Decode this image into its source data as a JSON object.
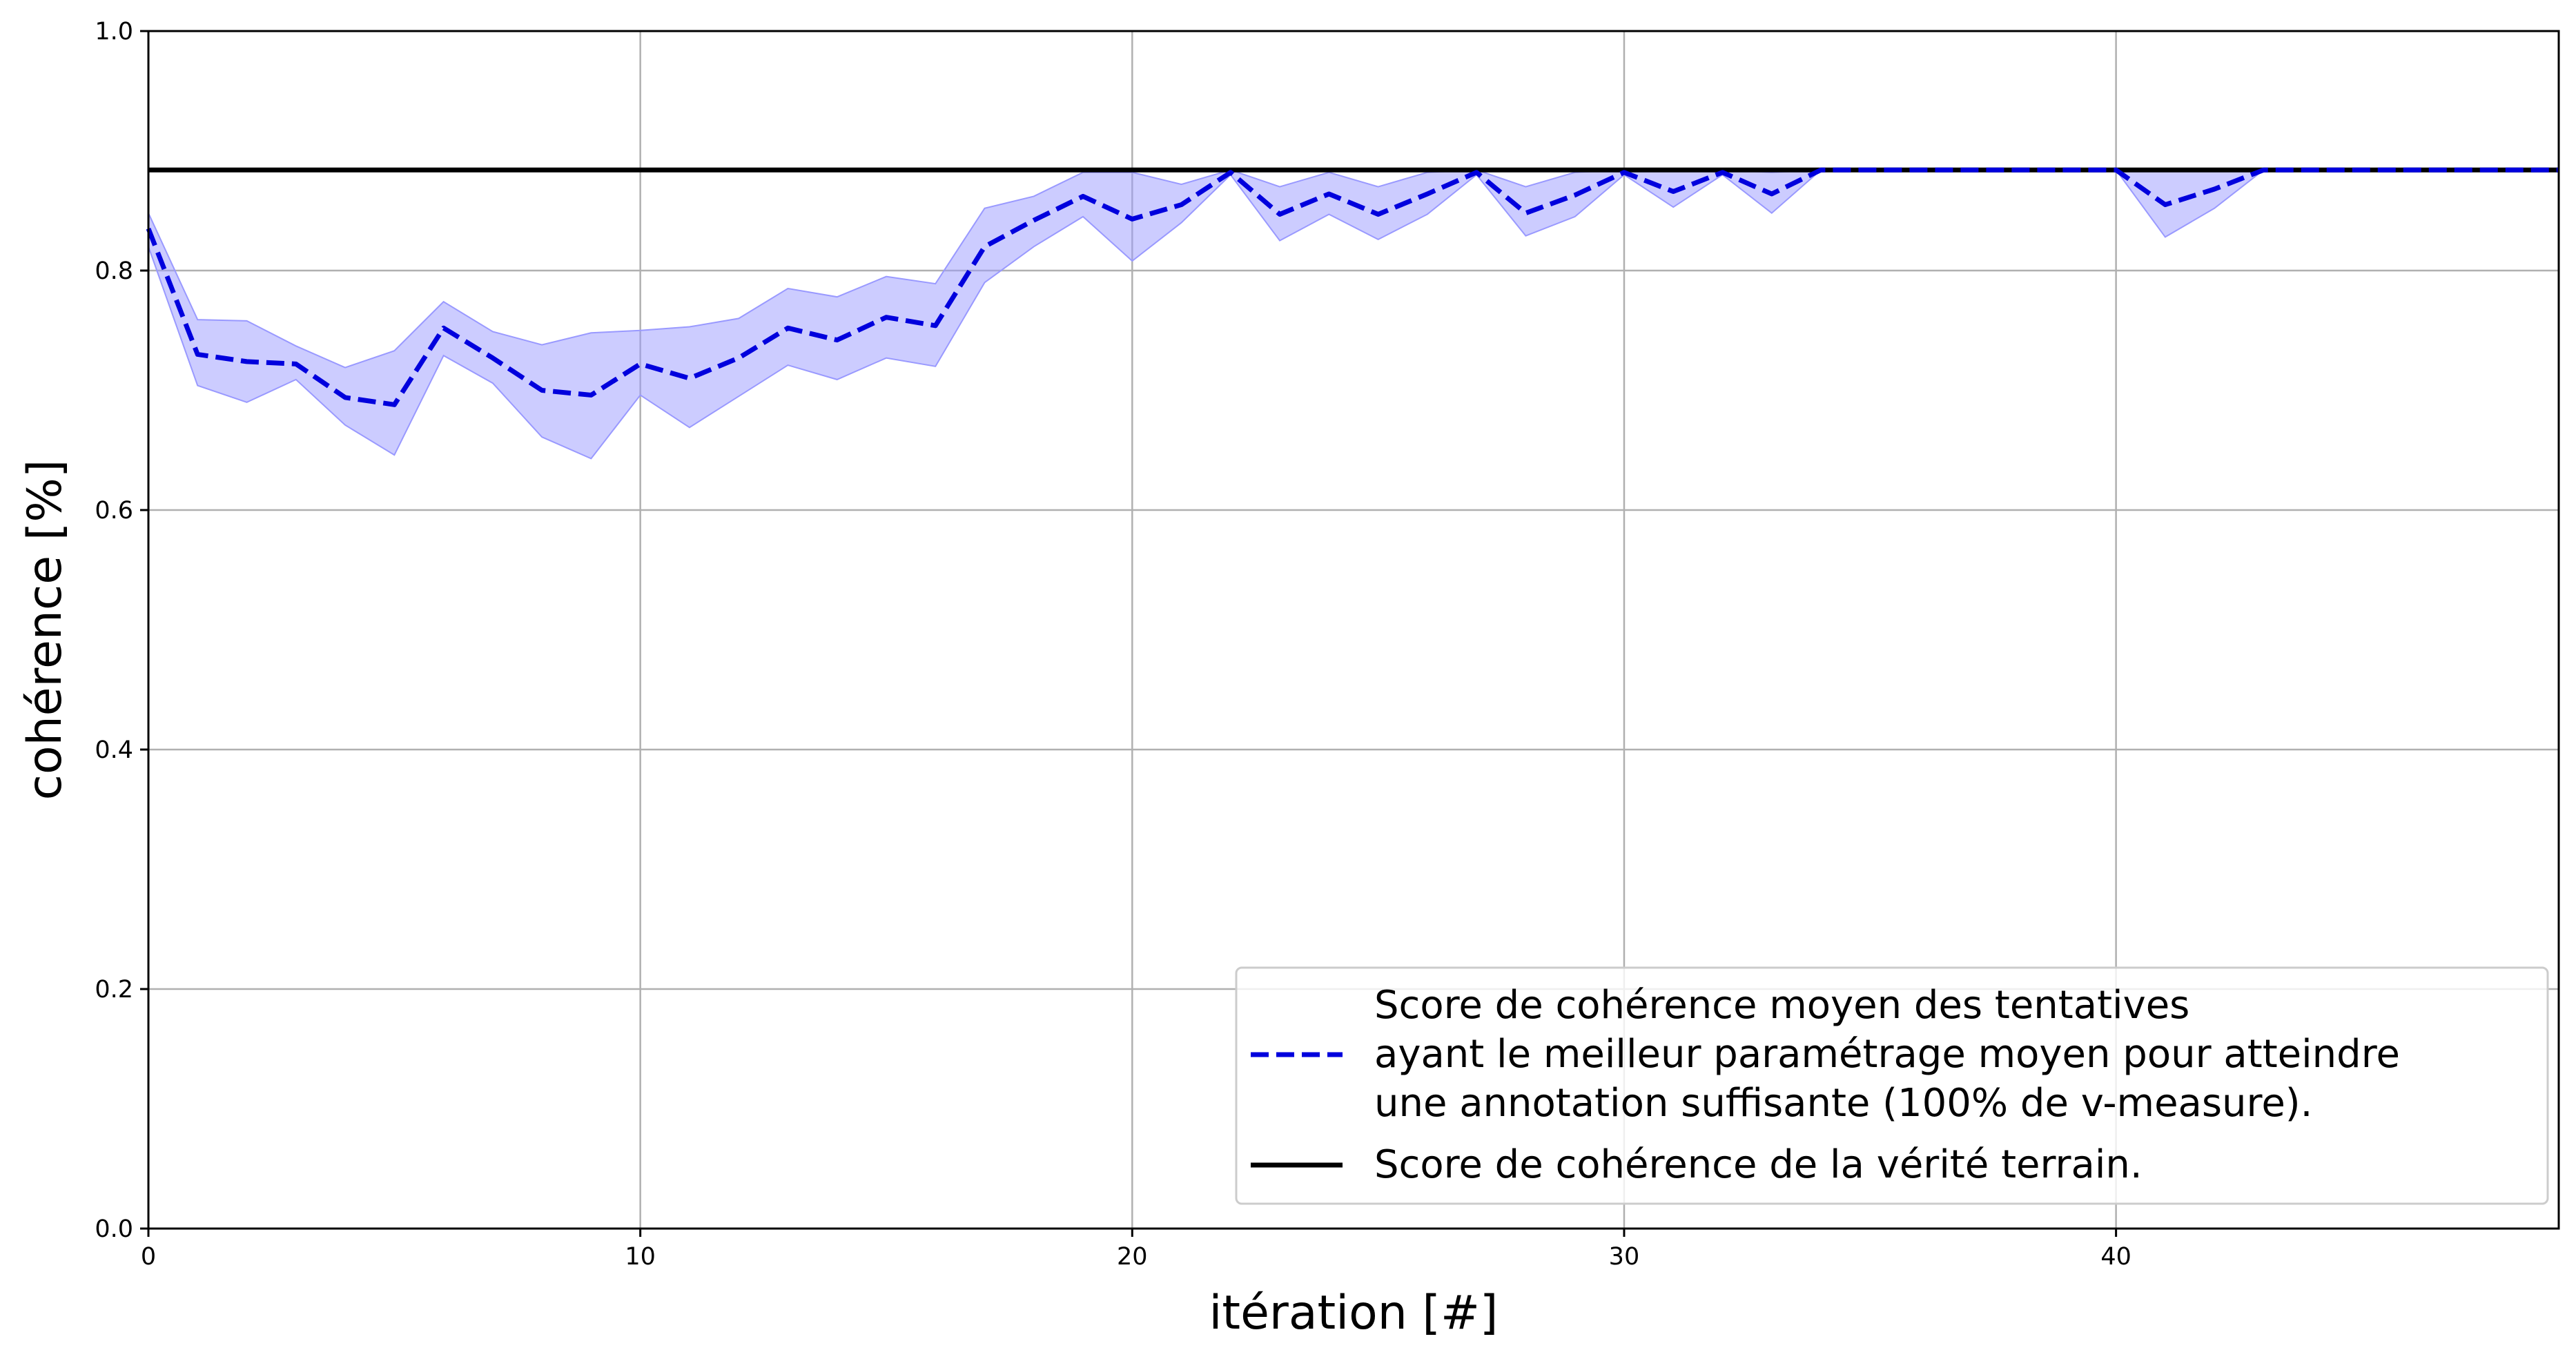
{
  "chart_data": {
    "type": "line",
    "xlabel": "itération [#]",
    "ylabel": "cohérence [%]",
    "xlim": [
      0,
      49
    ],
    "ylim": [
      0.0,
      1.0
    ],
    "xticks": [
      0,
      10,
      20,
      30,
      40
    ],
    "xtick_labels": [
      "0",
      "10",
      "20",
      "30",
      "40"
    ],
    "yticks": [
      0.0,
      0.2,
      0.4,
      0.6,
      0.8,
      1.0
    ],
    "ytick_labels": [
      "0.0",
      "0.2",
      "0.4",
      "0.6",
      "0.8",
      "1.0"
    ],
    "grid": true,
    "legend_position": "bottom-right",
    "series": [
      {
        "name_lines": [
          "Score de cohérence moyen des tentatives",
          "ayant le meilleur paramétrage moyen pour atteindre",
          "une annotation suffisante (100% de v-measure)."
        ],
        "color": "#0000dd",
        "style": "dashed",
        "x": [
          0,
          1,
          2,
          3,
          4,
          5,
          6,
          7,
          8,
          9,
          10,
          11,
          12,
          13,
          14,
          15,
          16,
          17,
          18,
          19,
          20,
          21,
          22,
          23,
          24,
          25,
          26,
          27,
          28,
          29,
          30,
          31,
          32,
          33,
          34,
          35,
          36,
          37,
          38,
          39,
          40,
          41,
          42,
          43,
          44,
          45,
          46,
          47,
          48,
          49
        ],
        "y": [
          0.835,
          0.73,
          0.724,
          0.722,
          0.694,
          0.688,
          0.752,
          0.727,
          0.7,
          0.696,
          0.722,
          0.71,
          0.727,
          0.752,
          0.742,
          0.761,
          0.754,
          0.82,
          0.842,
          0.862,
          0.843,
          0.855,
          0.882,
          0.847,
          0.864,
          0.847,
          0.864,
          0.882,
          0.848,
          0.863,
          0.882,
          0.866,
          0.882,
          0.864,
          0.884,
          0.884,
          0.884,
          0.884,
          0.884,
          0.884,
          0.884,
          0.855,
          0.868,
          0.884,
          0.884,
          0.884,
          0.884,
          0.884,
          0.884,
          0.884
        ],
        "band_upper": [
          0.848,
          0.759,
          0.758,
          0.737,
          0.719,
          0.733,
          0.774,
          0.749,
          0.738,
          0.748,
          0.75,
          0.753,
          0.76,
          0.785,
          0.778,
          0.795,
          0.789,
          0.852,
          0.862,
          0.882,
          0.882,
          0.872,
          0.884,
          0.87,
          0.882,
          0.87,
          0.882,
          0.884,
          0.87,
          0.882,
          0.884,
          0.884,
          0.884,
          0.882,
          0.884,
          0.884,
          0.884,
          0.884,
          0.884,
          0.884,
          0.884,
          0.884,
          0.884,
          0.884,
          0.884,
          0.884,
          0.884,
          0.884,
          0.884,
          0.884
        ],
        "band_lower": [
          0.82,
          0.704,
          0.69,
          0.709,
          0.671,
          0.646,
          0.729,
          0.706,
          0.661,
          0.643,
          0.696,
          0.669,
          0.695,
          0.721,
          0.709,
          0.727,
          0.72,
          0.79,
          0.82,
          0.845,
          0.808,
          0.84,
          0.88,
          0.825,
          0.847,
          0.826,
          0.847,
          0.88,
          0.829,
          0.845,
          0.88,
          0.853,
          0.88,
          0.848,
          0.884,
          0.884,
          0.884,
          0.884,
          0.884,
          0.884,
          0.884,
          0.828,
          0.852,
          0.884,
          0.884,
          0.884,
          0.884,
          0.884,
          0.884,
          0.884
        ],
        "band_color": "#9999ff"
      },
      {
        "name": "Score de cohérence de la vérité terrain.",
        "color": "#000000",
        "style": "solid",
        "y_const": 0.884
      }
    ]
  }
}
